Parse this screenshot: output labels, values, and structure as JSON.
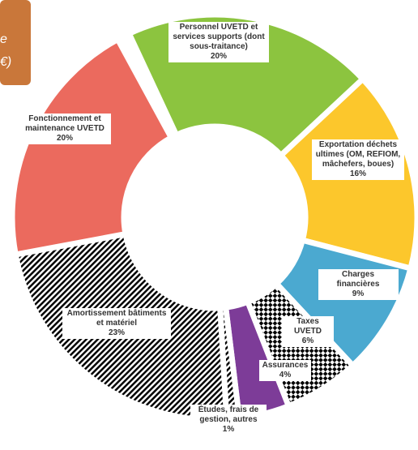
{
  "chart_data": {
    "type": "donut",
    "annotation": [
      "e",
      "€)"
    ],
    "categories": [
      "Personnel UVETD et services supports (dont sous-traitance)",
      "Exportation déchets ultimes (OM, REFIOM, mâchefers, boues)",
      "Charges financières",
      "Taxes UVETD",
      "Assurances",
      "Études, frais de gestion, autres",
      "Amortissement bâtiments et matériel",
      "Fonctionnement et maintenance UVETD"
    ],
    "values": [
      20,
      16,
      9,
      6,
      4,
      1,
      23,
      20
    ],
    "value_labels": [
      "20%",
      "16%",
      "9%",
      "6%",
      "4%",
      "1%",
      "23%",
      "20%"
    ],
    "colors": [
      "#8cc43f",
      "#fcc72c",
      "#4ba9d0",
      "#e2404b",
      "#7d3c98",
      "#d9d9d9",
      "#3c5583",
      "#eb6a5e"
    ]
  }
}
